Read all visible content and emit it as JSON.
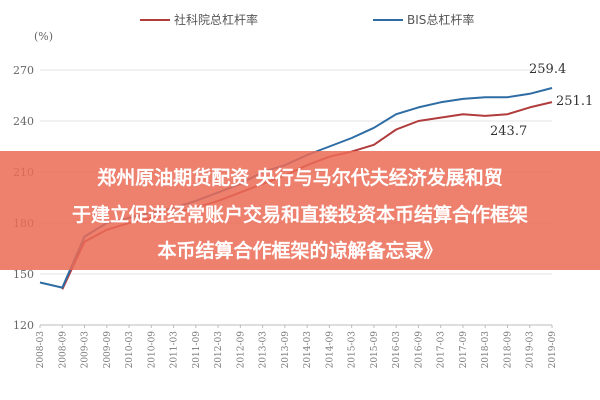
{
  "banner": {
    "line1": "郑州原油期货配资 央行与马尔代夫经济发展和贸",
    "line2": "于建立促进经常账户交易和直接投资本币结算合作框架",
    "line3": "本币结算合作框架的谅解备忘录》"
  },
  "colors": {
    "series1": "#b13c3c",
    "series2": "#2e6da4",
    "banner": "#eb6b56"
  },
  "chart_data": {
    "type": "line",
    "unit_label": "(%)",
    "ylim": [
      120,
      270
    ],
    "yticks": [
      120,
      150,
      180,
      210,
      240,
      270
    ],
    "x_labels": [
      "2008-03",
      "2008-09",
      "2009-03",
      "2009-09",
      "2010-03",
      "2010-09",
      "2011-03",
      "2011-09",
      "2012-03",
      "2012-09",
      "2013-03",
      "2013-09",
      "2014-03",
      "2014-09",
      "2015-03",
      "2015-09",
      "2016-03",
      "2016-09",
      "2017-03",
      "2017-09",
      "2018-03",
      "2018-09",
      "2019-03",
      "2019-09"
    ],
    "grid": true,
    "legend_position": "top",
    "series": [
      {
        "name": "社科院总杠杆率",
        "color": "#b13c3c",
        "values": [
          null,
          141,
          169,
          176,
          180,
          183,
          186,
          189,
          193,
          198,
          203,
          208,
          214,
          219,
          222,
          226,
          235,
          240,
          242,
          244,
          243,
          244,
          248,
          251.1
        ]
      },
      {
        "name": "BIS总杠杆率",
        "color": "#2e6da4",
        "values": [
          145,
          142,
          172,
          180,
          183,
          186,
          189,
          193,
          198,
          203,
          210,
          214,
          220,
          225,
          230,
          236,
          244,
          248,
          251,
          253,
          254,
          254,
          256,
          259.4
        ]
      }
    ],
    "annotations": [
      {
        "text": "259.4"
      },
      {
        "text": "251.1"
      },
      {
        "text": "243.7"
      }
    ]
  }
}
